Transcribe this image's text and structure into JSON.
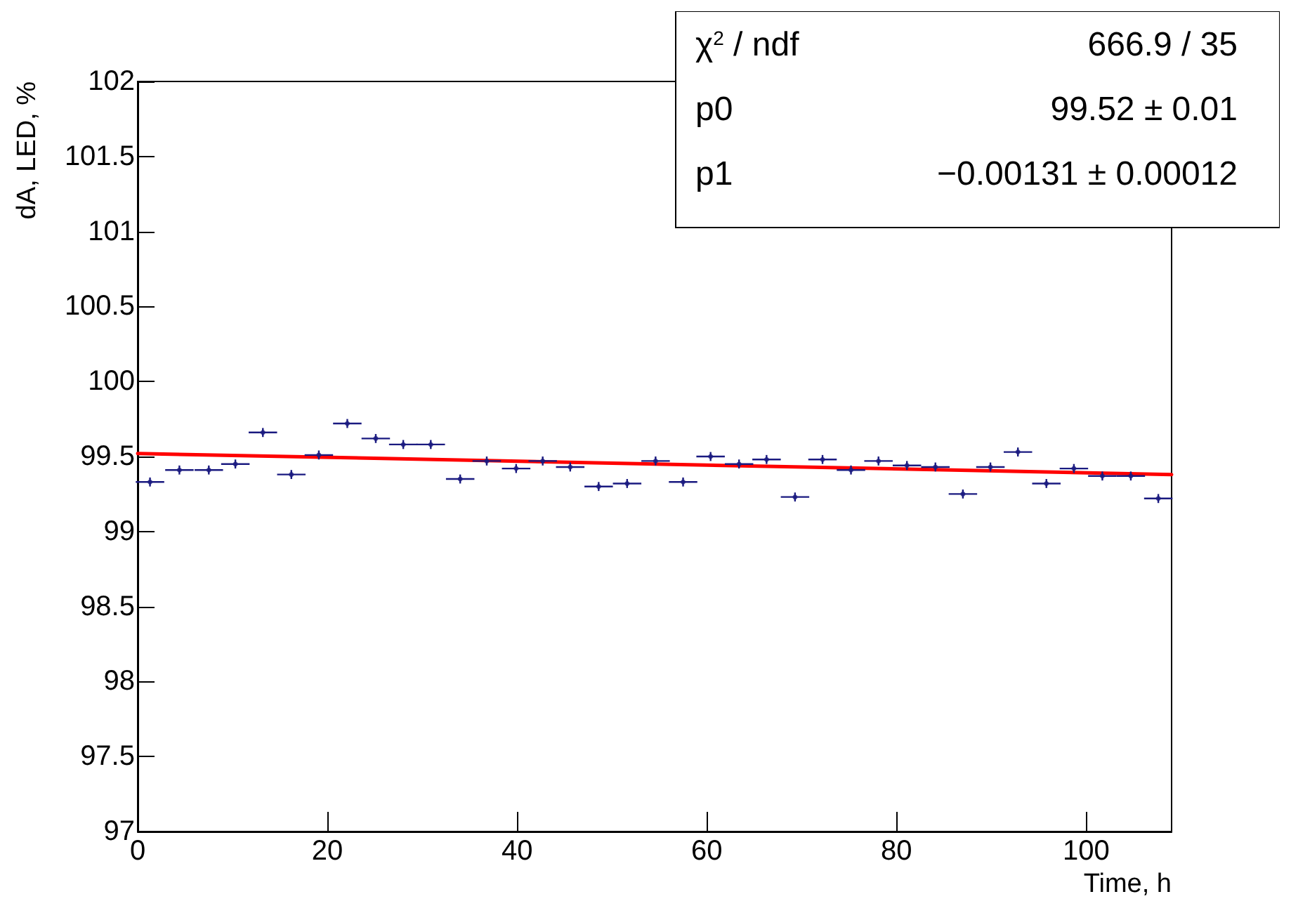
{
  "chart_data": {
    "type": "scatter",
    "xlabel": "Time, h",
    "ylabel": "dA, LED, %",
    "xlim": [
      0,
      109
    ],
    "xticks": [
      0,
      20,
      40,
      60,
      80,
      100
    ],
    "ylim": [
      97,
      102
    ],
    "yticks": [
      97,
      97.5,
      98,
      98.5,
      99,
      99.5,
      100,
      100.5,
      101,
      101.5,
      102
    ],
    "grid": false,
    "annotations": [
      "χ$^{2}$ / ndf",
      "666.9 / 35",
      "p0",
      "99.52 ± 0.01",
      "p1",
      "−0.00131 ± 0.00012"
    ],
    "series": [
      {
        "type": "scatter",
        "marker": "circle",
        "color": "#1a1a80",
        "x": [
          1.3,
          4.4,
          7.5,
          10.3,
          13.2,
          16.2,
          19.1,
          22.1,
          25.1,
          28.0,
          30.9,
          34.0,
          36.8,
          39.9,
          42.7,
          45.6,
          48.6,
          51.6,
          54.6,
          57.5,
          60.4,
          63.4,
          66.3,
          69.3,
          72.2,
          75.2,
          78.1,
          81.1,
          84.1,
          87.0,
          89.9,
          92.8,
          95.8,
          98.7,
          101.7,
          104.7,
          107.6
        ],
        "values": [
          99.33,
          99.41,
          99.41,
          99.45,
          99.66,
          99.38,
          99.51,
          99.72,
          99.62,
          99.58,
          99.58,
          99.35,
          99.47,
          99.42,
          99.47,
          99.43,
          99.3,
          99.32,
          99.47,
          99.33,
          99.5,
          99.45,
          99.48,
          99.23,
          99.48,
          99.41,
          99.47,
          99.44,
          99.43,
          99.25,
          99.43,
          99.53,
          99.32,
          99.42,
          99.37,
          99.37,
          99.22
        ],
        "errors": [
          0.03,
          0.03,
          0.03,
          0.03,
          0.03,
          0.03,
          0.03,
          0.03,
          0.03,
          0.03,
          0.03,
          0.03,
          0.03,
          0.03,
          0.03,
          0.03,
          0.03,
          0.03,
          0.03,
          0.03,
          0.03,
          0.03,
          0.03,
          0.03,
          0.03,
          0.03,
          0.03,
          0.03,
          0.03,
          0.03,
          0.03,
          0.03,
          0.03,
          0.03,
          0.03,
          0.03,
          0.03
        ],
        "xerrors": [
          1.5,
          1.5,
          1.5,
          1.5,
          1.5,
          1.5,
          1.5,
          1.5,
          1.5,
          1.5,
          1.5,
          1.5,
          1.5,
          1.5,
          1.5,
          1.5,
          1.5,
          1.5,
          1.5,
          1.5,
          1.5,
          1.5,
          1.5,
          1.5,
          1.5,
          1.5,
          1.5,
          1.5,
          1.5,
          1.5,
          1.5,
          1.5,
          1.5,
          1.5,
          1.5,
          1.5,
          1.5
        ]
      },
      {
        "type": "line",
        "color": "#ff0000",
        "line_style": "solid",
        "x": [
          0,
          109
        ],
        "values": [
          99.52,
          99.38
        ]
      }
    ]
  }
}
